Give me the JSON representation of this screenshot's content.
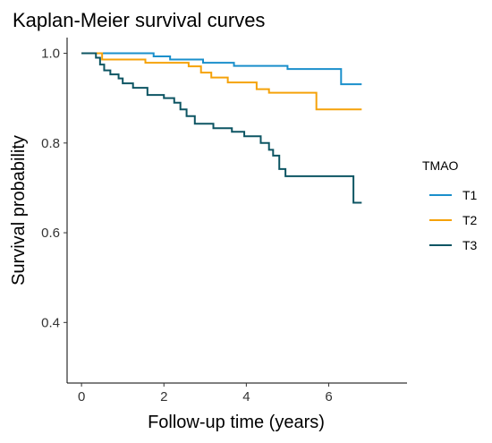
{
  "chart_data": {
    "type": "line",
    "title": "Kaplan-Meier survival curves",
    "xlabel": "Follow-up time (years)",
    "ylabel": "Survival probability",
    "xlim": [
      -0.35,
      7.9
    ],
    "ylim": [
      0.265,
      1.035
    ],
    "xticks": [
      0,
      2,
      4,
      6
    ],
    "yticks": [
      0.4,
      0.6,
      0.8,
      1.0
    ],
    "ytick_labels": [
      "0.4",
      "0.6",
      "0.8",
      "1.0"
    ],
    "legend_title": "TMAO",
    "legend_position": "right",
    "grid": false,
    "series": [
      {
        "name": "T1",
        "color": "#1a8fcb",
        "step_points": [
          [
            0,
            1.0
          ],
          [
            1.75,
            1.0
          ],
          [
            1.75,
            0.993
          ],
          [
            2.15,
            0.993
          ],
          [
            2.15,
            0.986
          ],
          [
            2.95,
            0.986
          ],
          [
            2.95,
            0.979
          ],
          [
            3.7,
            0.979
          ],
          [
            3.7,
            0.972
          ],
          [
            5.0,
            0.972
          ],
          [
            5.0,
            0.965
          ],
          [
            6.3,
            0.965
          ],
          [
            6.3,
            0.931
          ],
          [
            6.8,
            0.931
          ]
        ]
      },
      {
        "name": "T2",
        "color": "#f5a20a",
        "step_points": [
          [
            0,
            1.0
          ],
          [
            0.5,
            1.0
          ],
          [
            0.5,
            0.986
          ],
          [
            1.55,
            0.986
          ],
          [
            1.55,
            0.979
          ],
          [
            2.6,
            0.979
          ],
          [
            2.6,
            0.971
          ],
          [
            2.9,
            0.971
          ],
          [
            2.9,
            0.957
          ],
          [
            3.15,
            0.957
          ],
          [
            3.15,
            0.946
          ],
          [
            3.55,
            0.946
          ],
          [
            3.55,
            0.935
          ],
          [
            4.25,
            0.935
          ],
          [
            4.25,
            0.92
          ],
          [
            4.55,
            0.92
          ],
          [
            4.55,
            0.912
          ],
          [
            5.7,
            0.912
          ],
          [
            5.7,
            0.875
          ],
          [
            6.8,
            0.875
          ]
        ]
      },
      {
        "name": "T3",
        "color": "#0d5563",
        "step_points": [
          [
            0,
            1.0
          ],
          [
            0.35,
            1.0
          ],
          [
            0.35,
            0.99
          ],
          [
            0.45,
            0.99
          ],
          [
            0.45,
            0.975
          ],
          [
            0.55,
            0.975
          ],
          [
            0.55,
            0.962
          ],
          [
            0.7,
            0.962
          ],
          [
            0.7,
            0.953
          ],
          [
            0.9,
            0.953
          ],
          [
            0.9,
            0.944
          ],
          [
            1.0,
            0.944
          ],
          [
            1.0,
            0.933
          ],
          [
            1.25,
            0.933
          ],
          [
            1.25,
            0.923
          ],
          [
            1.6,
            0.923
          ],
          [
            1.6,
            0.907
          ],
          [
            2.0,
            0.907
          ],
          [
            2.0,
            0.9
          ],
          [
            2.25,
            0.9
          ],
          [
            2.25,
            0.89
          ],
          [
            2.4,
            0.89
          ],
          [
            2.4,
            0.875
          ],
          [
            2.55,
            0.875
          ],
          [
            2.55,
            0.86
          ],
          [
            2.75,
            0.86
          ],
          [
            2.75,
            0.843
          ],
          [
            3.2,
            0.843
          ],
          [
            3.2,
            0.833
          ],
          [
            3.65,
            0.833
          ],
          [
            3.65,
            0.825
          ],
          [
            3.95,
            0.825
          ],
          [
            3.95,
            0.815
          ],
          [
            4.35,
            0.815
          ],
          [
            4.35,
            0.8
          ],
          [
            4.55,
            0.8
          ],
          [
            4.55,
            0.785
          ],
          [
            4.65,
            0.785
          ],
          [
            4.65,
            0.772
          ],
          [
            4.8,
            0.772
          ],
          [
            4.8,
            0.742
          ],
          [
            4.95,
            0.742
          ],
          [
            4.95,
            0.726
          ],
          [
            6.6,
            0.726
          ],
          [
            6.6,
            0.667
          ],
          [
            6.8,
            0.667
          ]
        ]
      }
    ]
  }
}
